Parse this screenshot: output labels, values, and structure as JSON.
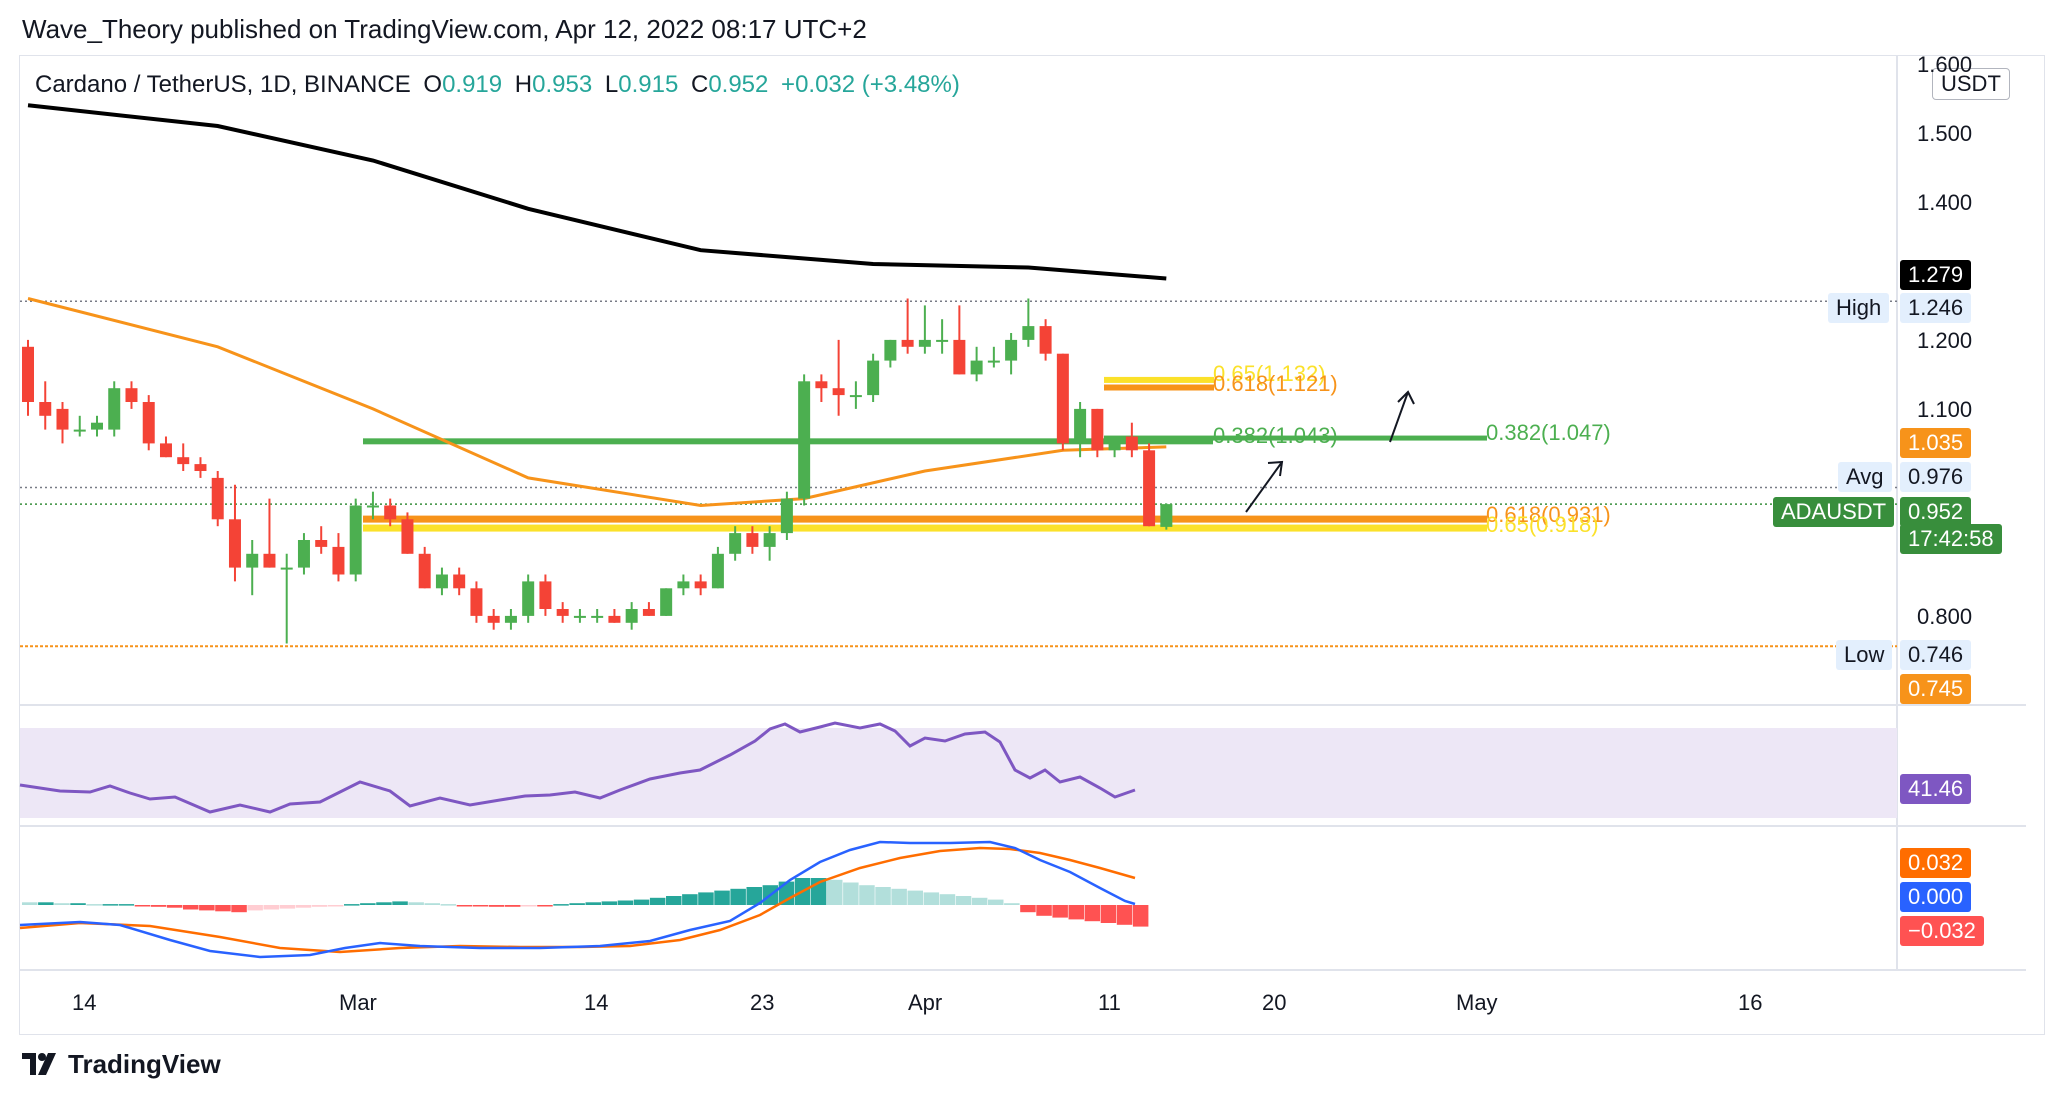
{
  "header": {
    "publisher_line": "Wave_Theory published on TradingView.com, Apr 12, 2022 08:17 UTC+2"
  },
  "legend": {
    "symbol": "Cardano / TetherUS, 1D, BINANCE",
    "open_label": "O",
    "open": "0.919",
    "high_label": "H",
    "high": "0.953",
    "low_label": "L",
    "low": "0.915",
    "close_label": "C",
    "close": "0.952",
    "change": "+0.032 (+3.48%)",
    "up_color": "#26a69a",
    "text_color": "#131722"
  },
  "currency_button": "USDT",
  "price_axis": {
    "ticks": [
      "1.600",
      "1.500",
      "1.400",
      "1.200",
      "1.100",
      "0.800"
    ],
    "tags": {
      "ma200": "1.279",
      "high_label": "High",
      "high_value": "1.246",
      "ma50": "1.035",
      "avg_label": "Avg",
      "avg_value": "0.976",
      "symbol_label": "ADAUSDT",
      "last_price": "0.952",
      "countdown": "17:42:58",
      "low_label": "Low",
      "low_value": "0.746",
      "low_line_value": "0.745",
      "rsi_value": "41.46",
      "macd_value": "0.032",
      "macd_zero": "0.000",
      "macd_hist": "−0.032"
    }
  },
  "time_axis": {
    "ticks": [
      "14",
      "Mar",
      "14",
      "23",
      "Apr",
      "11",
      "20",
      "May",
      "16"
    ]
  },
  "fib_labels": {
    "fib_065_top": "0.65(1.132)",
    "fib_0618_top": "0.618(1.121)",
    "fib_0382_left": "0.382(1.043)",
    "fib_0382_right": "0.382(1.047)",
    "fib_0618_bottom": "0.618(0.931)",
    "fib_065_bottom": "0.65(0.918)"
  },
  "colors": {
    "up": "#4caf50",
    "down": "#f44336",
    "ma200": "#000000",
    "ma50": "#f7931a",
    "fib_green": "#4caf50",
    "fib_yellow": "#fbe12a",
    "fib_orange": "#f7931a",
    "rsi": "#7e57c2",
    "rsi_band": "#ede7f6",
    "macd": "#2962ff",
    "signal": "#ff6d00",
    "hist_up_strong": "#26a69a",
    "hist_up_weak": "#b2dfdb",
    "hist_down_strong": "#ff5252",
    "hist_down_weak": "#ffcdd2"
  },
  "footer": {
    "brand": "TradingView"
  },
  "chart_data": {
    "type": "candlestick",
    "title": "Cardano / TetherUS, 1D, BINANCE",
    "ylim": [
      0.7,
      1.62
    ],
    "x_range": [
      "2022-02-09",
      "2022-05-21"
    ],
    "candles": [
      {
        "date": "2022-02-09",
        "o": 1.18,
        "h": 1.19,
        "l": 1.08,
        "c": 1.1
      },
      {
        "date": "2022-02-10",
        "o": 1.1,
        "h": 1.13,
        "l": 1.06,
        "c": 1.08
      },
      {
        "date": "2022-02-11",
        "o": 1.09,
        "h": 1.1,
        "l": 1.04,
        "c": 1.06
      },
      {
        "date": "2022-02-12",
        "o": 1.06,
        "h": 1.08,
        "l": 1.05,
        "c": 1.06
      },
      {
        "date": "2022-02-13",
        "o": 1.06,
        "h": 1.08,
        "l": 1.05,
        "c": 1.07
      },
      {
        "date": "2022-02-14",
        "o": 1.06,
        "h": 1.13,
        "l": 1.05,
        "c": 1.12
      },
      {
        "date": "2022-02-15",
        "o": 1.12,
        "h": 1.13,
        "l": 1.09,
        "c": 1.1
      },
      {
        "date": "2022-02-16",
        "o": 1.1,
        "h": 1.11,
        "l": 1.03,
        "c": 1.04
      },
      {
        "date": "2022-02-17",
        "o": 1.04,
        "h": 1.05,
        "l": 1.02,
        "c": 1.02
      },
      {
        "date": "2022-02-18",
        "o": 1.02,
        "h": 1.04,
        "l": 1.0,
        "c": 1.01
      },
      {
        "date": "2022-02-19",
        "o": 1.01,
        "h": 1.02,
        "l": 0.99,
        "c": 1.0
      },
      {
        "date": "2022-02-20",
        "o": 0.99,
        "h": 1.0,
        "l": 0.92,
        "c": 0.93
      },
      {
        "date": "2022-02-21",
        "o": 0.93,
        "h": 0.98,
        "l": 0.84,
        "c": 0.86
      },
      {
        "date": "2022-02-22",
        "o": 0.86,
        "h": 0.9,
        "l": 0.82,
        "c": 0.88
      },
      {
        "date": "2022-02-23",
        "o": 0.88,
        "h": 0.96,
        "l": 0.86,
        "c": 0.86
      },
      {
        "date": "2022-02-24",
        "o": 0.86,
        "h": 0.88,
        "l": 0.75,
        "c": 0.86
      },
      {
        "date": "2022-02-25",
        "o": 0.86,
        "h": 0.91,
        "l": 0.85,
        "c": 0.9
      },
      {
        "date": "2022-02-26",
        "o": 0.9,
        "h": 0.92,
        "l": 0.88,
        "c": 0.89
      },
      {
        "date": "2022-02-27",
        "o": 0.89,
        "h": 0.91,
        "l": 0.84,
        "c": 0.85
      },
      {
        "date": "2022-02-28",
        "o": 0.85,
        "h": 0.96,
        "l": 0.84,
        "c": 0.95
      },
      {
        "date": "2022-03-01",
        "o": 0.95,
        "h": 0.97,
        "l": 0.93,
        "c": 0.95
      },
      {
        "date": "2022-03-02",
        "o": 0.95,
        "h": 0.96,
        "l": 0.92,
        "c": 0.93
      },
      {
        "date": "2022-03-03",
        "o": 0.93,
        "h": 0.94,
        "l": 0.88,
        "c": 0.88
      },
      {
        "date": "2022-03-04",
        "o": 0.88,
        "h": 0.89,
        "l": 0.83,
        "c": 0.83
      },
      {
        "date": "2022-03-05",
        "o": 0.83,
        "h": 0.86,
        "l": 0.82,
        "c": 0.85
      },
      {
        "date": "2022-03-06",
        "o": 0.85,
        "h": 0.86,
        "l": 0.82,
        "c": 0.83
      },
      {
        "date": "2022-03-07",
        "o": 0.83,
        "h": 0.84,
        "l": 0.78,
        "c": 0.79
      },
      {
        "date": "2022-03-08",
        "o": 0.79,
        "h": 0.8,
        "l": 0.77,
        "c": 0.78
      },
      {
        "date": "2022-03-09",
        "o": 0.78,
        "h": 0.8,
        "l": 0.77,
        "c": 0.79
      },
      {
        "date": "2022-03-10",
        "o": 0.79,
        "h": 0.85,
        "l": 0.78,
        "c": 0.84
      },
      {
        "date": "2022-03-11",
        "o": 0.84,
        "h": 0.85,
        "l": 0.79,
        "c": 0.8
      },
      {
        "date": "2022-03-12",
        "o": 0.8,
        "h": 0.81,
        "l": 0.78,
        "c": 0.79
      },
      {
        "date": "2022-03-13",
        "o": 0.79,
        "h": 0.8,
        "l": 0.78,
        "c": 0.79
      },
      {
        "date": "2022-03-14",
        "o": 0.79,
        "h": 0.8,
        "l": 0.78,
        "c": 0.79
      },
      {
        "date": "2022-03-15",
        "o": 0.79,
        "h": 0.8,
        "l": 0.78,
        "c": 0.78
      },
      {
        "date": "2022-03-16",
        "o": 0.78,
        "h": 0.81,
        "l": 0.77,
        "c": 0.8
      },
      {
        "date": "2022-03-17",
        "o": 0.8,
        "h": 0.81,
        "l": 0.79,
        "c": 0.79
      },
      {
        "date": "2022-03-18",
        "o": 0.79,
        "h": 0.83,
        "l": 0.79,
        "c": 0.83
      },
      {
        "date": "2022-03-19",
        "o": 0.83,
        "h": 0.85,
        "l": 0.82,
        "c": 0.84
      },
      {
        "date": "2022-03-20",
        "o": 0.84,
        "h": 0.85,
        "l": 0.82,
        "c": 0.83
      },
      {
        "date": "2022-03-21",
        "o": 0.83,
        "h": 0.89,
        "l": 0.83,
        "c": 0.88
      },
      {
        "date": "2022-03-22",
        "o": 0.88,
        "h": 0.92,
        "l": 0.87,
        "c": 0.91
      },
      {
        "date": "2022-03-23",
        "o": 0.91,
        "h": 0.92,
        "l": 0.88,
        "c": 0.89
      },
      {
        "date": "2022-03-24",
        "o": 0.89,
        "h": 0.92,
        "l": 0.87,
        "c": 0.91
      },
      {
        "date": "2022-03-25",
        "o": 0.91,
        "h": 0.97,
        "l": 0.9,
        "c": 0.96
      },
      {
        "date": "2022-03-26",
        "o": 0.96,
        "h": 1.14,
        "l": 0.95,
        "c": 1.13
      },
      {
        "date": "2022-03-27",
        "o": 1.13,
        "h": 1.14,
        "l": 1.1,
        "c": 1.12
      },
      {
        "date": "2022-03-28",
        "o": 1.12,
        "h": 1.19,
        "l": 1.08,
        "c": 1.11
      },
      {
        "date": "2022-03-29",
        "o": 1.11,
        "h": 1.13,
        "l": 1.09,
        "c": 1.11
      },
      {
        "date": "2022-03-30",
        "o": 1.11,
        "h": 1.17,
        "l": 1.1,
        "c": 1.16
      },
      {
        "date": "2022-03-31",
        "o": 1.16,
        "h": 1.19,
        "l": 1.15,
        "c": 1.19
      },
      {
        "date": "2022-04-01",
        "o": 1.19,
        "h": 1.25,
        "l": 1.17,
        "c": 1.18
      },
      {
        "date": "2022-04-02",
        "o": 1.18,
        "h": 1.24,
        "l": 1.17,
        "c": 1.19
      },
      {
        "date": "2022-04-03",
        "o": 1.19,
        "h": 1.22,
        "l": 1.17,
        "c": 1.19
      },
      {
        "date": "2022-04-04",
        "o": 1.19,
        "h": 1.24,
        "l": 1.14,
        "c": 1.14
      },
      {
        "date": "2022-04-05",
        "o": 1.14,
        "h": 1.18,
        "l": 1.13,
        "c": 1.16
      },
      {
        "date": "2022-04-06",
        "o": 1.16,
        "h": 1.18,
        "l": 1.15,
        "c": 1.16
      },
      {
        "date": "2022-04-07",
        "o": 1.16,
        "h": 1.2,
        "l": 1.14,
        "c": 1.19
      },
      {
        "date": "2022-04-08",
        "o": 1.19,
        "h": 1.25,
        "l": 1.18,
        "c": 1.21
      },
      {
        "date": "2022-04-09",
        "o": 1.21,
        "h": 1.22,
        "l": 1.16,
        "c": 1.17
      },
      {
        "date": "2022-04-10",
        "o": 1.17,
        "h": 1.17,
        "l": 1.03,
        "c": 1.04
      },
      {
        "date": "2022-04-11",
        "o": 1.04,
        "h": 1.1,
        "l": 1.02,
        "c": 1.09
      },
      {
        "date": "2022-04-12",
        "o": 1.09,
        "h": 1.09,
        "l": 1.02,
        "c": 1.03
      },
      {
        "date": "2022-04-13",
        "o": 1.03,
        "h": 1.05,
        "l": 1.02,
        "c": 1.05
      },
      {
        "date": "2022-04-14",
        "o": 1.05,
        "h": 1.07,
        "l": 1.02,
        "c": 1.03
      },
      {
        "date": "2022-04-15",
        "o": 1.03,
        "h": 1.04,
        "l": 0.92,
        "c": 0.92
      },
      {
        "date": "2022-04-16",
        "o": 0.919,
        "h": 0.953,
        "l": 0.915,
        "c": 0.952
      }
    ],
    "moving_averages": [
      {
        "name": "MA200",
        "points": [
          [
            "2022-02-09",
            1.53
          ],
          [
            "2022-02-20",
            1.5
          ],
          [
            "2022-03-01",
            1.45
          ],
          [
            "2022-03-10",
            1.38
          ],
          [
            "2022-03-20",
            1.32
          ],
          [
            "2022-03-30",
            1.3
          ],
          [
            "2022-04-08",
            1.295
          ],
          [
            "2022-04-16",
            1.279
          ]
        ]
      },
      {
        "name": "MA50",
        "points": [
          [
            "2022-02-09",
            1.25
          ],
          [
            "2022-02-20",
            1.18
          ],
          [
            "2022-03-01",
            1.09
          ],
          [
            "2022-03-10",
            0.99
          ],
          [
            "2022-03-20",
            0.95
          ],
          [
            "2022-03-26",
            0.96
          ],
          [
            "2022-04-02",
            1.0
          ],
          [
            "2022-04-10",
            1.03
          ],
          [
            "2022-04-16",
            1.035
          ]
        ]
      }
    ],
    "fib_levels": [
      {
        "label": "0.65(1.132)",
        "value": 1.132
      },
      {
        "label": "0.618(1.121)",
        "value": 1.121
      },
      {
        "label": "0.382(1.043)",
        "value": 1.043
      },
      {
        "label": "0.382(1.047)",
        "value": 1.047
      },
      {
        "label": "0.618(0.931)",
        "value": 0.931
      },
      {
        "label": "0.65(0.918)",
        "value": 0.918
      }
    ],
    "reference_lines": {
      "high": 1.246,
      "avg": 0.976,
      "low": 0.746
    },
    "rsi": {
      "last": 41.46
    },
    "macd": {
      "macd": 0.032,
      "zero": 0.0,
      "histogram": -0.032
    }
  }
}
